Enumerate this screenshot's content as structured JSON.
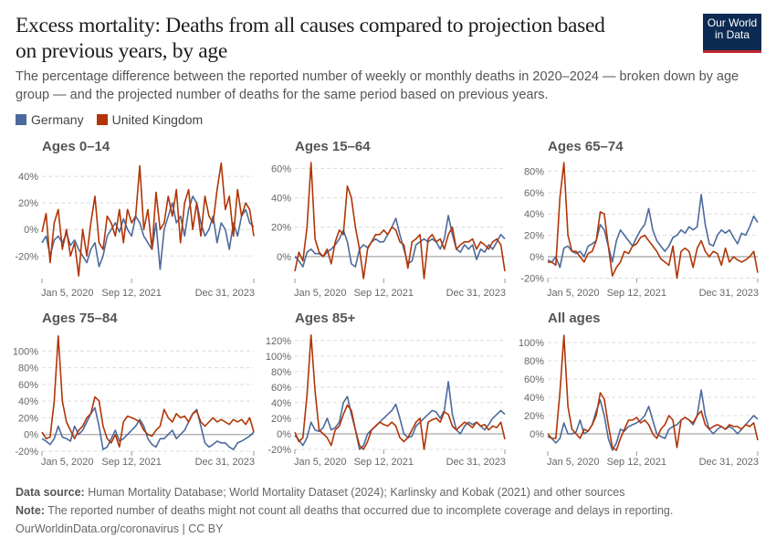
{
  "header": {
    "title": "Excess mortality: Deaths from all causes compared to projection based on previous years, by age",
    "subtitle": "The percentage difference between the reported number of weekly or monthly deaths in 2020–2024 — broken down by age group — and the projected number of deaths for the same period based on previous years.",
    "logo_text": "Our World in Data"
  },
  "legend": [
    {
      "name": "Germany",
      "color": "#4c6a9c"
    },
    {
      "name": "United Kingdom",
      "color": "#b13507"
    }
  ],
  "footer": {
    "source_label": "Data source:",
    "source_text": "Human Mortality Database; World Mortality Dataset (2024); Karlinsky and Kobak (2021) and other sources",
    "note_label": "Note:",
    "note_text": "The reported number of deaths might not count all deaths that occurred due to incomplete coverage and delays in reporting.",
    "url": "OurWorldinData.org/coronavirus | CC BY"
  },
  "chart_data": {
    "type": "line",
    "x_tick_labels": [
      "Jan 5, 2020",
      "Sep 12, 2021",
      "Dec 31, 2023"
    ],
    "x_ticks": [
      "2020-01-05",
      "2021-09-12",
      "2023-12-31"
    ],
    "x": [
      "2020-01-05",
      "2020-02-02",
      "2020-03-01",
      "2020-03-29",
      "2020-04-26",
      "2020-05-24",
      "2020-06-21",
      "2020-07-19",
      "2020-08-16",
      "2020-09-13",
      "2020-10-11",
      "2020-11-08",
      "2020-12-06",
      "2021-01-03",
      "2021-01-31",
      "2021-02-28",
      "2021-03-28",
      "2021-04-25",
      "2021-05-23",
      "2021-06-20",
      "2021-07-18",
      "2021-08-15",
      "2021-09-12",
      "2021-10-10",
      "2021-11-07",
      "2021-12-05",
      "2022-01-02",
      "2022-01-30",
      "2022-02-27",
      "2022-03-27",
      "2022-04-24",
      "2022-05-22",
      "2022-06-19",
      "2022-07-17",
      "2022-08-14",
      "2022-09-11",
      "2022-10-09",
      "2022-11-06",
      "2022-12-04",
      "2023-01-01",
      "2023-01-29",
      "2023-02-26",
      "2023-03-26",
      "2023-04-23",
      "2023-05-21",
      "2023-06-18",
      "2023-07-16",
      "2023-08-13",
      "2023-09-10",
      "2023-10-08",
      "2023-11-05",
      "2023-12-03",
      "2023-12-31"
    ],
    "y_unit": "%",
    "grid": "horizontal dashed",
    "panels": [
      {
        "title": "Ages 0–14",
        "ylim": [
          -37,
          49
        ],
        "y_ticks": [
          -20,
          0,
          20,
          40
        ],
        "series": [
          {
            "name": "Germany",
            "values": [
              -10,
              -5,
              -20,
              -8,
              -5,
              -10,
              -3,
              -12,
              -8,
              -15,
              -20,
              -25,
              -15,
              -10,
              -28,
              -20,
              -5,
              0,
              5,
              -2,
              8,
              0,
              -5,
              10,
              5,
              -5,
              -10,
              -15,
              5,
              -30,
              0,
              10,
              20,
              5,
              10,
              -5,
              15,
              25,
              20,
              5,
              -5,
              0,
              10,
              -10,
              5,
              0,
              -15,
              5,
              -5,
              10,
              15,
              5,
              2
            ]
          },
          {
            "name": "United Kingdom",
            "values": [
              -2,
              12,
              -25,
              5,
              15,
              -15,
              0,
              -20,
              -10,
              -35,
              0,
              -20,
              5,
              25,
              -10,
              -15,
              10,
              5,
              -5,
              15,
              -10,
              15,
              5,
              10,
              48,
              0,
              15,
              -15,
              28,
              0,
              5,
              25,
              10,
              30,
              -10,
              20,
              30,
              0,
              20,
              -5,
              25,
              10,
              5,
              30,
              50,
              15,
              25,
              -5,
              30,
              10,
              20,
              15,
              -5
            ]
          }
        ]
      },
      {
        "title": "Ages 15–64",
        "ylim": [
          -15,
          64
        ],
        "y_ticks": [
          0,
          20,
          40,
          60
        ],
        "series": [
          {
            "name": "Germany",
            "values": [
              0,
              -3,
              -7,
              3,
              5,
              2,
              2,
              0,
              3,
              5,
              8,
              12,
              18,
              10,
              -5,
              -7,
              5,
              8,
              6,
              10,
              12,
              10,
              10,
              15,
              20,
              26,
              15,
              5,
              -5,
              -3,
              8,
              10,
              12,
              10,
              12,
              10,
              5,
              12,
              28,
              15,
              5,
              3,
              8,
              5,
              8,
              -2,
              5,
              3,
              8,
              5,
              10,
              15,
              12
            ]
          },
          {
            "name": "United Kingdom",
            "values": [
              -10,
              3,
              -3,
              20,
              64,
              12,
              3,
              0,
              5,
              -5,
              10,
              18,
              15,
              48,
              40,
              20,
              5,
              -15,
              5,
              10,
              15,
              15,
              18,
              15,
              20,
              18,
              10,
              8,
              -8,
              10,
              12,
              15,
              -15,
              12,
              15,
              10,
              12,
              5,
              15,
              20,
              5,
              8,
              10,
              10,
              12,
              5,
              10,
              8,
              5,
              10,
              12,
              8,
              -10
            ]
          }
        ]
      },
      {
        "title": "Ages 65–74",
        "ylim": [
          -20,
          88
        ],
        "y_ticks": [
          -20,
          0,
          20,
          40,
          60,
          80
        ],
        "series": [
          {
            "name": "Germany",
            "values": [
              -3,
              -5,
              0,
              -10,
              8,
              10,
              5,
              3,
              5,
              0,
              10,
              12,
              15,
              30,
              25,
              10,
              -5,
              15,
              25,
              20,
              15,
              10,
              18,
              25,
              30,
              45,
              25,
              15,
              10,
              5,
              10,
              18,
              20,
              25,
              22,
              28,
              25,
              28,
              58,
              30,
              12,
              10,
              20,
              25,
              22,
              25,
              18,
              12,
              22,
              20,
              28,
              38,
              32
            ]
          },
          {
            "name": "United Kingdom",
            "values": [
              -5,
              -5,
              -8,
              55,
              88,
              20,
              5,
              5,
              0,
              -5,
              3,
              5,
              15,
              42,
              40,
              10,
              -18,
              -10,
              -5,
              5,
              3,
              10,
              12,
              18,
              20,
              15,
              10,
              5,
              -2,
              -5,
              -8,
              10,
              -20,
              5,
              8,
              5,
              -10,
              8,
              15,
              5,
              0,
              5,
              3,
              -8,
              8,
              -5,
              0,
              -3,
              -5,
              -3,
              0,
              5,
              -15
            ]
          }
        ]
      },
      {
        "title": "Ages 75–84",
        "ylim": [
          -20,
          120
        ],
        "y_ticks": [
          -20,
          0,
          20,
          40,
          60,
          80,
          100
        ],
        "series": [
          {
            "name": "Germany",
            "values": [
              -5,
              -8,
              -12,
              -5,
              10,
              -3,
              -5,
              -8,
              10,
              0,
              5,
              15,
              25,
              32,
              10,
              -18,
              -15,
              -5,
              5,
              -8,
              -5,
              0,
              5,
              10,
              18,
              10,
              -5,
              -12,
              -15,
              -5,
              -5,
              0,
              5,
              -5,
              0,
              5,
              15,
              25,
              30,
              10,
              -10,
              -15,
              -12,
              -8,
              -10,
              -10,
              -15,
              -18,
              -10,
              -8,
              -5,
              -2,
              3
            ]
          },
          {
            "name": "United Kingdom",
            "values": [
              3,
              -5,
              -3,
              40,
              118,
              40,
              15,
              5,
              -5,
              5,
              10,
              20,
              25,
              45,
              40,
              10,
              -5,
              -10,
              0,
              -15,
              15,
              22,
              20,
              18,
              15,
              5,
              0,
              -2,
              5,
              10,
              30,
              20,
              15,
              25,
              20,
              22,
              15,
              25,
              28,
              15,
              10,
              15,
              20,
              15,
              18,
              15,
              12,
              18,
              15,
              18,
              12,
              20,
              3
            ]
          }
        ]
      },
      {
        "title": "Ages 85+",
        "ylim": [
          -20,
          128
        ],
        "y_ticks": [
          -20,
          0,
          20,
          40,
          60,
          80,
          100,
          120
        ],
        "series": [
          {
            "name": "Germany",
            "values": [
              -2,
              -8,
              -15,
              -5,
              15,
              5,
              3,
              8,
              20,
              5,
              8,
              15,
              40,
              48,
              25,
              5,
              -20,
              -15,
              0,
              5,
              10,
              15,
              20,
              25,
              30,
              38,
              20,
              0,
              -5,
              -3,
              10,
              15,
              20,
              25,
              30,
              28,
              20,
              30,
              67,
              25,
              5,
              0,
              10,
              15,
              12,
              15,
              10,
              5,
              12,
              20,
              25,
              30,
              25
            ]
          },
          {
            "name": "United Kingdom",
            "values": [
              2,
              -10,
              -5,
              50,
              127,
              55,
              5,
              0,
              -5,
              -15,
              5,
              10,
              25,
              37,
              30,
              5,
              -15,
              -20,
              -10,
              5,
              10,
              15,
              12,
              10,
              15,
              10,
              -5,
              -10,
              -5,
              5,
              15,
              20,
              -20,
              15,
              18,
              20,
              15,
              28,
              25,
              10,
              5,
              10,
              15,
              12,
              8,
              15,
              10,
              12,
              5,
              10,
              8,
              15,
              -7
            ]
          }
        ]
      },
      {
        "title": "All ages",
        "ylim": [
          -19,
          108
        ],
        "y_ticks": [
          0,
          20,
          40,
          60,
          80,
          100
        ],
        "series": [
          {
            "name": "Germany",
            "values": [
              -3,
              -5,
              -10,
              -5,
              12,
              0,
              0,
              2,
              15,
              0,
              3,
              10,
              25,
              37,
              20,
              -5,
              -18,
              -10,
              5,
              3,
              8,
              10,
              12,
              15,
              20,
              30,
              15,
              0,
              -3,
              -5,
              5,
              8,
              10,
              15,
              18,
              15,
              10,
              20,
              48,
              20,
              5,
              0,
              5,
              8,
              5,
              8,
              5,
              0,
              5,
              10,
              15,
              20,
              16
            ]
          },
          {
            "name": "United Kingdom",
            "values": [
              0,
              -5,
              -5,
              45,
              108,
              30,
              5,
              0,
              -5,
              5,
              3,
              10,
              20,
              45,
              38,
              10,
              -15,
              -18,
              -5,
              5,
              15,
              15,
              18,
              12,
              15,
              10,
              0,
              -5,
              5,
              10,
              20,
              15,
              -15,
              15,
              18,
              15,
              12,
              20,
              25,
              10,
              5,
              8,
              10,
              8,
              5,
              10,
              8,
              8,
              5,
              10,
              8,
              12,
              -7
            ]
          }
        ]
      }
    ]
  }
}
